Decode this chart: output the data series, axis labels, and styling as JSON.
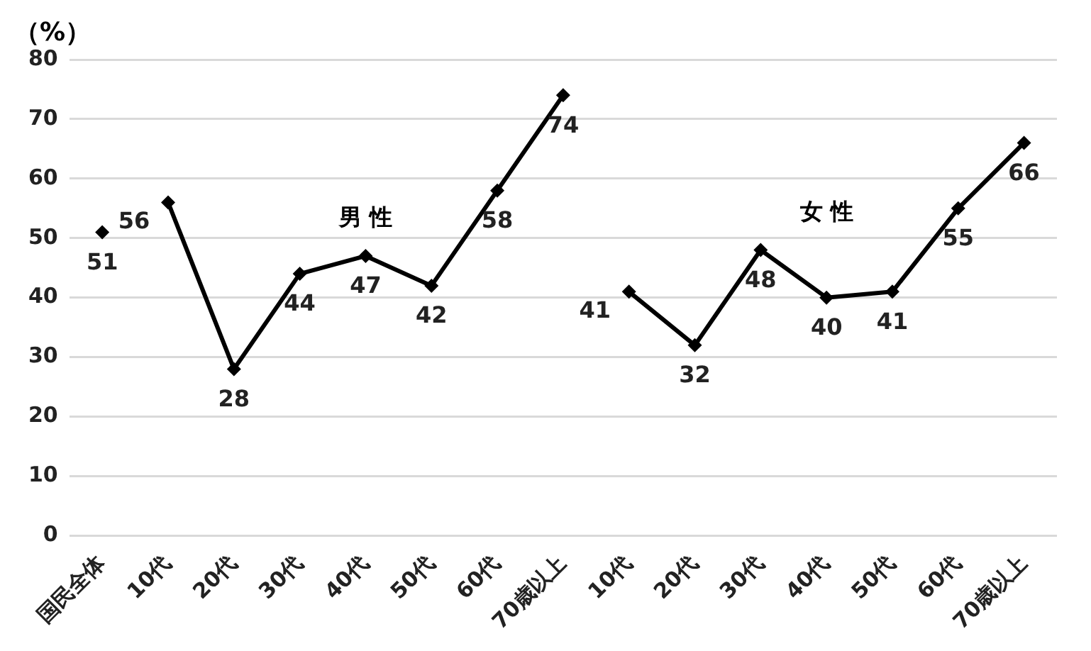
{
  "chart_data": {
    "type": "line",
    "ylabel": "（%）",
    "categories": [
      "国民全体",
      "10代",
      "20代",
      "30代",
      "40代",
      "50代",
      "60代",
      "70歳以上",
      "10代",
      "20代",
      "30代",
      "40代",
      "50代",
      "60代",
      "70歳以上"
    ],
    "series": [
      {
        "color": "#000000",
        "values": [
          51,
          null,
          null,
          null,
          null,
          null,
          null,
          null,
          null,
          null,
          null,
          null,
          null,
          null,
          null
        ]
      },
      {
        "name": "男 性",
        "color": "#000000",
        "values": [
          null,
          56,
          28,
          44,
          47,
          42,
          58,
          74,
          null,
          null,
          null,
          null,
          null,
          null,
          null
        ]
      },
      {
        "name": "女 性",
        "color": "#000000",
        "values": [
          null,
          null,
          null,
          null,
          null,
          null,
          null,
          null,
          41,
          32,
          48,
          40,
          41,
          55,
          66
        ]
      }
    ],
    "ylim": [
      0,
      80
    ],
    "yticks": [
      0,
      10,
      20,
      30,
      40,
      50,
      60,
      70,
      80
    ],
    "grid": "y",
    "legend": false,
    "marker": "diamond",
    "line_style": "solid",
    "data_labels": true
  }
}
